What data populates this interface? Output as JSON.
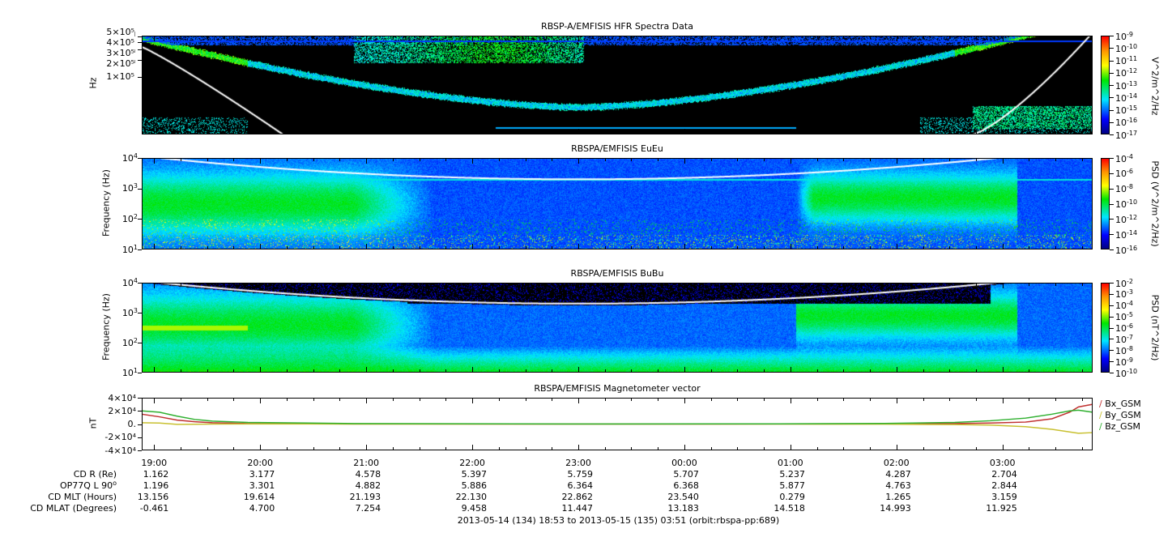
{
  "footer": "2013-05-14 (134) 18:53 to 2013-05-15 (135) 03:51 (orbit:rbspa-pp:689)",
  "colors": {
    "bx": "#c03030",
    "by": "#c8c030",
    "bz": "#30b030",
    "curve": "#ffffff"
  },
  "chart_data": [
    {
      "type": "heatmap",
      "title": "RBSP-A/EMFISIS  HFR Spectra Data",
      "ylabel": "Hz",
      "yscale": "log",
      "ylim": [
        10000,
        520000
      ],
      "ytick_labels": [
        "5×10⁵",
        "4×10⁵",
        "3×10⁵",
        "2×10⁵",
        "1×10⁵"
      ],
      "ytick_values": [
        500000,
        400000,
        300000,
        200000,
        100000
      ],
      "colorbar": {
        "label": "V^2/m^2/Hz",
        "range_exp": [
          -17,
          -9
        ],
        "tick_exps": [
          -9,
          -10,
          -11,
          -12,
          -13,
          -14,
          -15,
          -16,
          -17
        ]
      }
    },
    {
      "type": "heatmap",
      "title": "RBSPA/EMFISIS  EuEu",
      "ylabel": "Frequency (Hz)",
      "yscale": "log",
      "ylim": [
        10,
        10000
      ],
      "ytick_exps": [
        4,
        3,
        2,
        1
      ],
      "colorbar": {
        "label": "PSD (V^2/m^2/Hz)",
        "range_exp": [
          -16,
          -4
        ],
        "tick_exps": [
          -4,
          -6,
          -8,
          -10,
          -12,
          -14,
          -16
        ]
      }
    },
    {
      "type": "heatmap",
      "title": "RBSPA/EMFISIS  BuBu",
      "ylabel": "Frequency (Hz)",
      "yscale": "log",
      "ylim": [
        10,
        10000
      ],
      "ytick_exps": [
        4,
        3,
        2,
        1
      ],
      "colorbar": {
        "label": "PSD (nT^2/Hz)",
        "range_exp": [
          -10,
          -2
        ],
        "tick_exps": [
          -2,
          -3,
          -4,
          -5,
          -6,
          -7,
          -8,
          -9,
          -10
        ]
      }
    },
    {
      "type": "line",
      "title": "RBSPA/EMFISIS  Magnetometer vector",
      "ylabel": "nT",
      "ylim": [
        -40000,
        40000
      ],
      "ytick_labels": [
        "4×10⁴",
        "2×10⁴",
        "0.",
        "-2×10⁴",
        "-4×10⁴"
      ],
      "ytick_values": [
        40000,
        20000,
        0,
        -20000,
        -40000
      ],
      "x_minutes_from_start": [
        0,
        10,
        20,
        30,
        40,
        60,
        120,
        240,
        360,
        420,
        460,
        480,
        500,
        515,
        525,
        530,
        538
      ],
      "series": [
        {
          "name": "Bx_GSM",
          "values": [
            15000,
            11000,
            6000,
            3500,
            2000,
            800,
            200,
            0,
            100,
            300,
            800,
            1500,
            3000,
            8000,
            18000,
            26000,
            30000
          ]
        },
        {
          "name": "By_GSM",
          "values": [
            2000,
            1500,
            -500,
            -300,
            0,
            200,
            0,
            0,
            0,
            -200,
            -800,
            -1500,
            -4000,
            -8000,
            -12000,
            -14000,
            -13000
          ]
        },
        {
          "name": "Bz_GSM",
          "values": [
            20000,
            18000,
            12000,
            7000,
            4500,
            2500,
            800,
            200,
            300,
            900,
            2500,
            5000,
            9000,
            15000,
            20000,
            21000,
            18000
          ]
        }
      ],
      "legend": "right"
    }
  ],
  "time_axis": {
    "start": "18:53",
    "end": "03:51",
    "labels": [
      "19:00",
      "20:00",
      "21:00",
      "22:00",
      "23:00",
      "00:00",
      "01:00",
      "02:00",
      "03:00"
    ]
  },
  "ephemeris": {
    "rows": [
      {
        "label": "CD R (Re)",
        "values": [
          "1.162",
          "3.177",
          "4.578",
          "5.397",
          "5.759",
          "5.707",
          "5.237",
          "4.287",
          "2.704"
        ]
      },
      {
        "label": "OP77Q L 90",
        "sup": "o",
        "values": [
          "1.196",
          "3.301",
          "4.882",
          "5.886",
          "6.364",
          "6.368",
          "5.877",
          "4.763",
          "2.844"
        ]
      },
      {
        "label": "CD MLT (Hours)",
        "values": [
          "13.156",
          "19.614",
          "21.193",
          "22.130",
          "22.862",
          "23.540",
          "0.279",
          "1.265",
          "3.159"
        ]
      },
      {
        "label": "CD MLAT (Degrees)",
        "values": [
          "-0.461",
          "4.700",
          "7.254",
          "9.458",
          "11.447",
          "13.183",
          "14.518",
          "14.993",
          "11.925"
        ]
      }
    ]
  }
}
